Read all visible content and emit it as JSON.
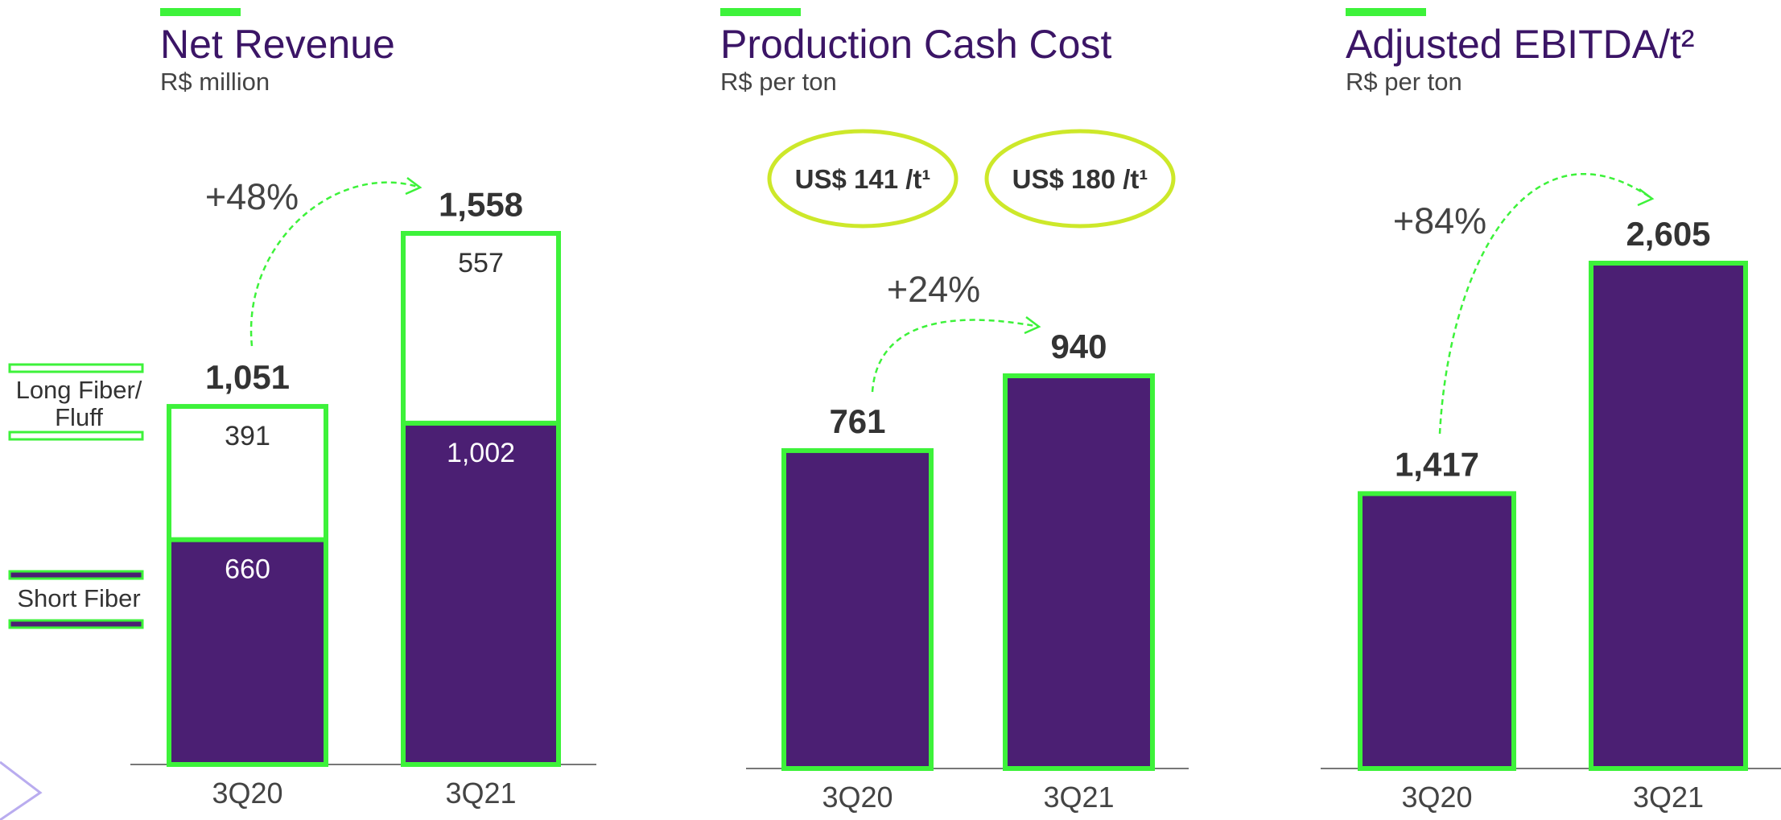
{
  "chart_data": [
    {
      "type": "stacked_bar",
      "title": "Net Revenue",
      "subtitle": "R$ million",
      "categories": [
        "3Q20",
        "3Q21"
      ],
      "series": [
        {
          "name": "Short Fiber",
          "color": "#4b1f73",
          "values": [
            660,
            1002
          ],
          "value_labels": [
            "660",
            "1,002"
          ]
        },
        {
          "name": "Long Fiber/Fluff",
          "color": "#ffffff",
          "values": [
            391,
            557
          ]
        }
      ],
      "totals": [
        1051,
        1558
      ],
      "total_labels": [
        "1,051",
        "1,558"
      ],
      "annotation": "+48%",
      "border_color": "#3df23a"
    },
    {
      "type": "bar",
      "title": "Production Cash Cost",
      "subtitle": "R$ per ton",
      "categories": [
        "3Q20",
        "3Q21"
      ],
      "values": [
        761,
        940
      ],
      "color": "#4b1f73",
      "annotation": "+24%",
      "callouts": [
        "US$ 141 /t¹",
        "US$ 180 /t¹"
      ],
      "border_color": "#3df23a"
    },
    {
      "type": "bar",
      "title": "Adjusted EBITDA/t²",
      "subtitle": "R$ per ton",
      "categories": [
        "3Q20",
        "3Q21"
      ],
      "values": [
        1417,
        2605
      ],
      "value_labels": [
        "1,417",
        "2,605"
      ],
      "color": "#4b1f73",
      "annotation": "+84%",
      "border_color": "#3df23a"
    }
  ]
}
